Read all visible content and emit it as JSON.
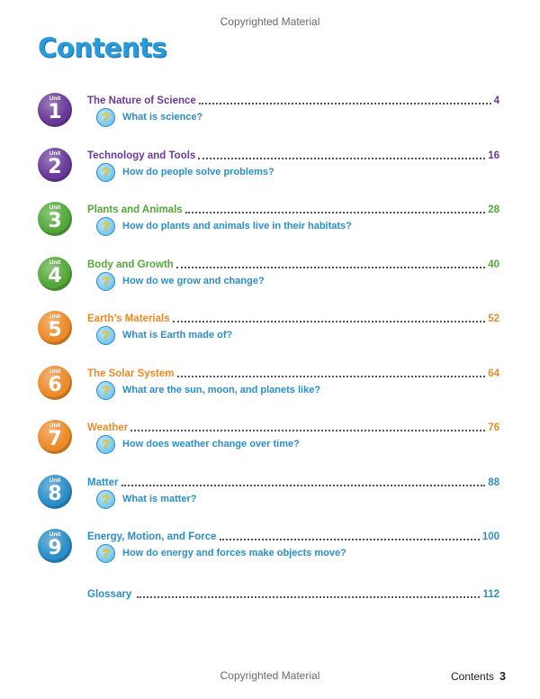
{
  "watermark_top": "Copyrighted Material",
  "watermark_bottom": "Copyrighted Material",
  "title": "Contents",
  "colors": {
    "title": "#2a9ad8",
    "purple": "#6a3a9a",
    "green": "#54a83a",
    "orange": "#ec8a28",
    "blue": "#2a8ec8",
    "question": "#2a8ec8"
  },
  "badge_label": "Unit",
  "units": [
    {
      "number": "1",
      "title": "The Nature of Science",
      "page": "4",
      "question": "What is science?",
      "color": "#6a3a9a"
    },
    {
      "number": "2",
      "title": "Technology and Tools",
      "page": "16",
      "question": "How do people solve problems?",
      "color": "#6a3a9a"
    },
    {
      "number": "3",
      "title": "Plants and Animals",
      "page": "28",
      "question": "How do plants and animals live in their habitats?",
      "color": "#54a83a"
    },
    {
      "number": "4",
      "title": "Body and Growth",
      "page": "40",
      "question": "How do we grow and change?",
      "color": "#54a83a"
    },
    {
      "number": "5",
      "title": "Earth’s Materials",
      "page": "52",
      "question": "What is Earth made of?",
      "color": "#ec8a28"
    },
    {
      "number": "6",
      "title": "The Solar System",
      "page": "64",
      "question": "What are the sun, moon, and planets like?",
      "color": "#ec8a28"
    },
    {
      "number": "7",
      "title": "Weather",
      "page": "76",
      "question": "How does weather change over time?",
      "color": "#ec8a28"
    },
    {
      "number": "8",
      "title": "Matter",
      "page": "88",
      "question": "What is matter?",
      "color": "#2a8ec8"
    },
    {
      "number": "9",
      "title": "Energy, Motion, and Force",
      "page": "100",
      "question": "How do energy and forces make objects move?",
      "color": "#2a8ec8"
    }
  ],
  "question_icon": "question-mark-icon",
  "glossary": {
    "title": "Glossary",
    "page": "112"
  },
  "footer": {
    "label": "Contents",
    "page": "3"
  }
}
